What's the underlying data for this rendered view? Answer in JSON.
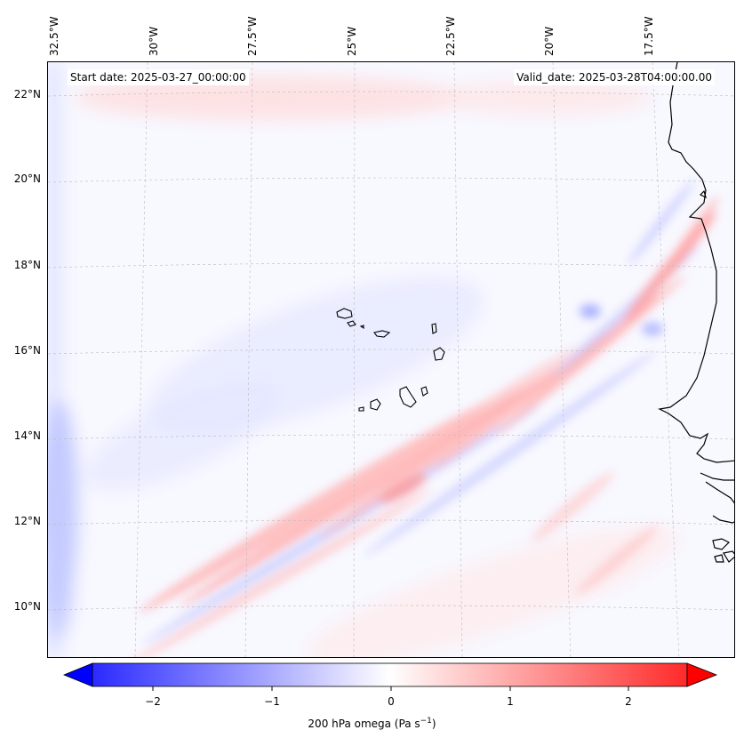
{
  "map": {
    "title_left": "Start date: 2025-03-27_00:00:00",
    "title_right": "Valid_date: 2025-03-28T04:00:00.00",
    "longitude_labels": [
      "32.5°W",
      "30°W",
      "27.5°W",
      "25°W",
      "22.5°W",
      "20°W",
      "17.5°W"
    ],
    "latitude_labels": [
      "22°N",
      "20°N",
      "18°N",
      "16°N",
      "14°N",
      "12°N",
      "10°N"
    ],
    "features": [
      "Cape Verde islands",
      "West African coastline"
    ]
  },
  "colorbar": {
    "label": "200 hPa omega (Pa s",
    "label_unit_superscript": "−1",
    "label_close": ")",
    "tick_labels": [
      "−2",
      "−1",
      "0",
      "1",
      "2"
    ],
    "min_color": "#0000ff",
    "mid_color": "#ffffff",
    "max_color": "#ff0000",
    "range": [
      -2.6,
      2.6
    ]
  },
  "colors": {
    "ascent": "#ff0000",
    "descent": "#0000ff",
    "coastline": "#000000",
    "grid": "#bbbbbb"
  }
}
